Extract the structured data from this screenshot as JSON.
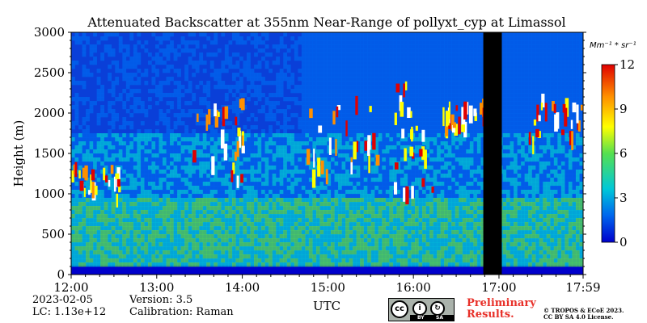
{
  "chart_data": {
    "type": "heatmap",
    "title": "Attenuated Backscatter at 355nm Near-Range of pollyxt_cyp at Limassol",
    "xlabel": "UTC",
    "ylabel": "Height (m)",
    "x_ticks": [
      "12:00",
      "13:00",
      "14:00",
      "15:00",
      "16:00",
      "17:00",
      "17:59"
    ],
    "x_range": [
      "12:00",
      "17:59"
    ],
    "y_ticks": [
      0,
      500,
      1000,
      1500,
      2000,
      2500,
      3000
    ],
    "y_range": [
      0,
      3000
    ],
    "colorbar": {
      "unit": "Mm⁻¹ * sr⁻¹",
      "ticks": [
        0,
        3,
        6,
        9,
        12
      ],
      "range": [
        0,
        12
      ],
      "colormap": [
        "#0000cc",
        "#0066ee",
        "#00c8d8",
        "#55e050",
        "#ffff00",
        "#ff9000",
        "#e00000"
      ]
    },
    "no_signal_gaps": [
      [
        "16:49",
        "17:02"
      ]
    ],
    "cloud_layers": [
      {
        "time": [
          "12:00",
          "12:35"
        ],
        "height": [
          1000,
          1400
        ]
      },
      {
        "time": [
          "13:25",
          "14:00"
        ],
        "height": [
          1200,
          2200
        ]
      },
      {
        "time": [
          "14:45",
          "15:35"
        ],
        "height": [
          1300,
          2300
        ]
      },
      {
        "time": [
          "15:45",
          "16:15"
        ],
        "height": [
          1000,
          2400
        ]
      },
      {
        "time": [
          "16:20",
          "16:50"
        ],
        "height": [
          1800,
          2200
        ]
      },
      {
        "time": [
          "17:20",
          "17:59"
        ],
        "height": [
          1700,
          2300
        ]
      }
    ]
  },
  "info": {
    "date": "2023-02-05",
    "lc": "LC: 1.13e+12",
    "version": "Version: 3.5",
    "calibration": "Calibration: Raman"
  },
  "license": {
    "cc": "cc",
    "by": "BY",
    "sa": "SA",
    "preliminary_line1": "Preliminary",
    "preliminary_line2": "Results.",
    "copyright_line1": "© TROPOS & ECoE 2023.",
    "copyright_line2": "CC BY SA 4.0 License."
  }
}
